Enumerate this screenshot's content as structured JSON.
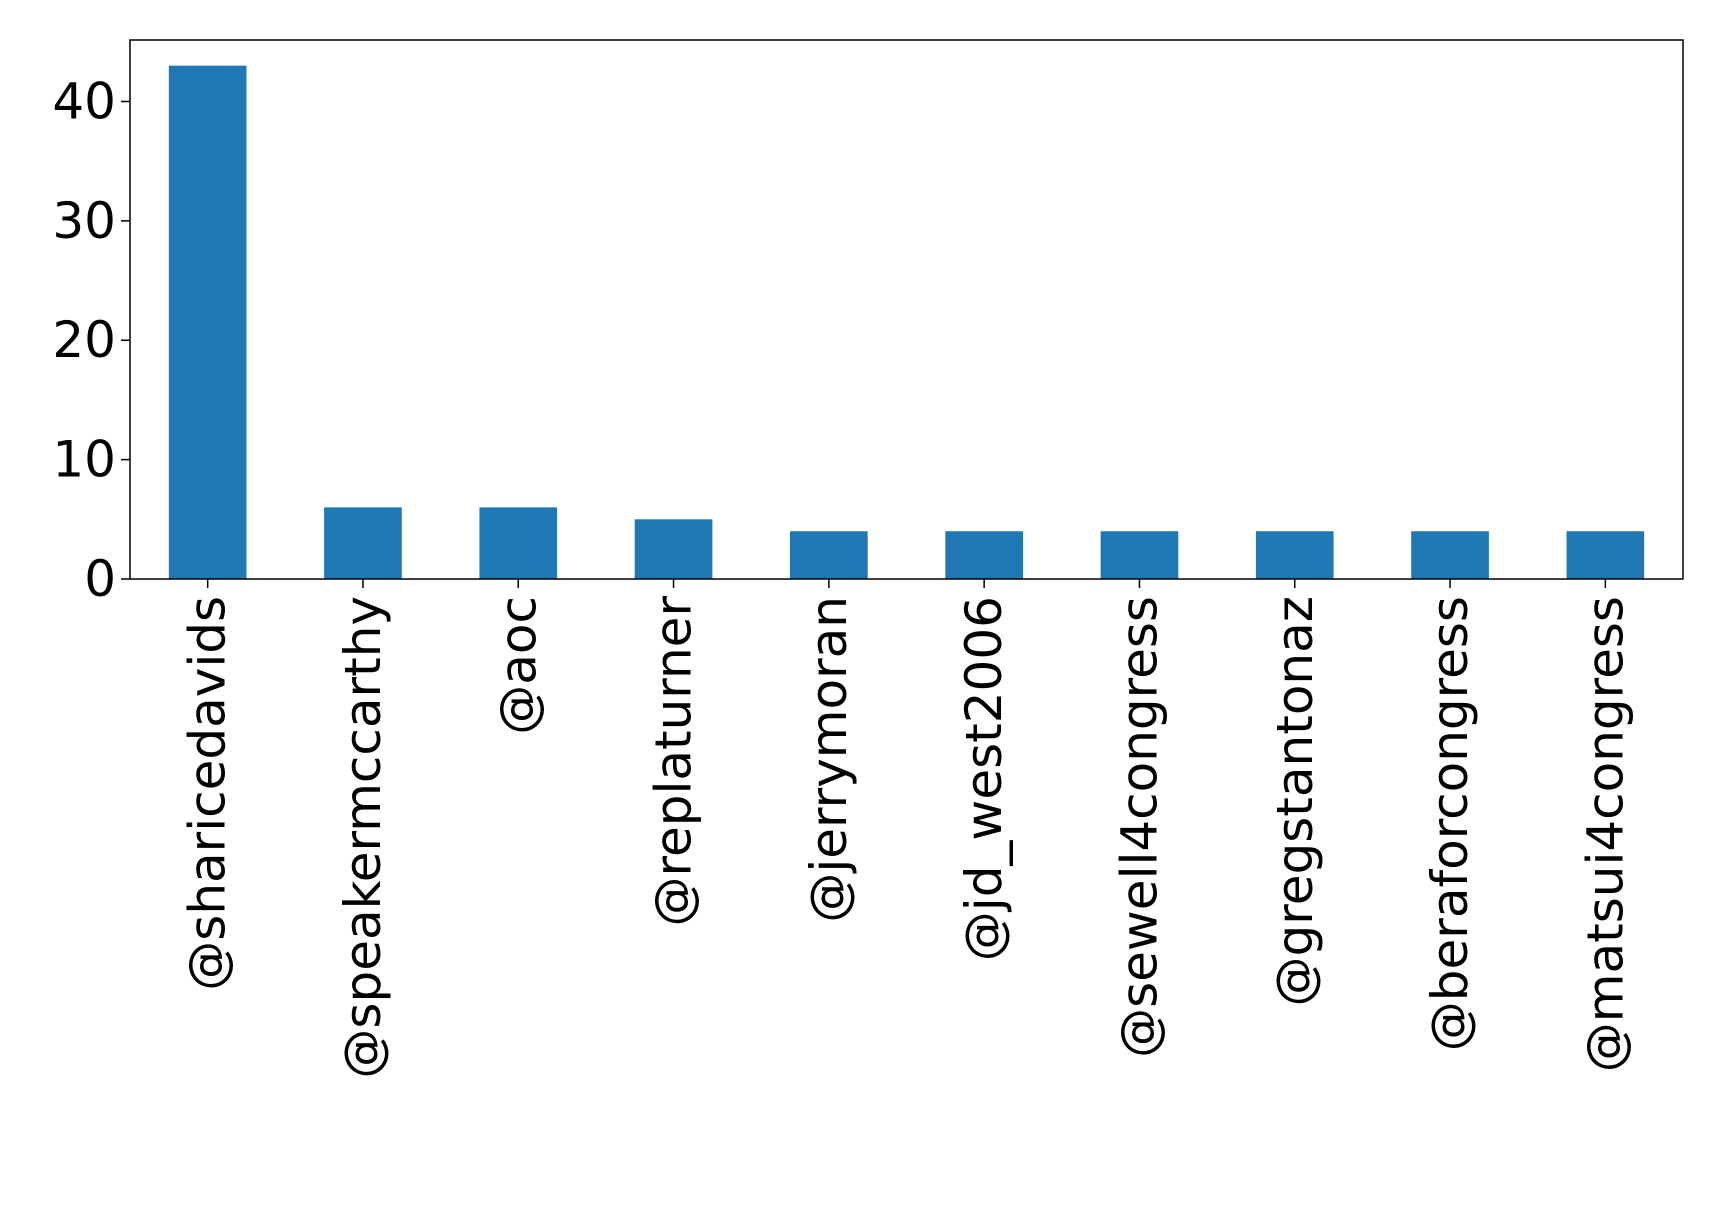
{
  "chart_data": {
    "type": "bar",
    "title": "",
    "xlabel": "",
    "ylabel": "",
    "categories": [
      "@sharicedavids",
      "@speakermccarthy",
      "@aoc",
      "@replaturner",
      "@jerrymoran",
      "@jd_west2006",
      "@sewell4congress",
      "@gregstantonaz",
      "@beraforcongress",
      "@matsui4congress"
    ],
    "values": [
      43,
      6,
      6,
      5,
      4,
      4,
      4,
      4,
      4,
      4
    ],
    "ylim": [
      0,
      45.15
    ],
    "yticks": [
      0,
      10,
      20,
      30,
      40
    ],
    "grid": false,
    "legend": "none",
    "bar_color": "#1f77b4",
    "x_tick_rotation": "vertical"
  }
}
